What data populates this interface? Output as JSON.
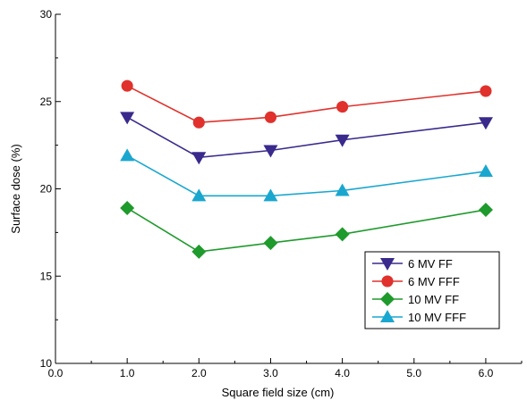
{
  "chart_data": {
    "type": "line",
    "xlabel": "Square field size (cm)",
    "ylabel": "Surface dose (%)",
    "xlim": [
      0.0,
      6.5
    ],
    "ylim": [
      10,
      30
    ],
    "x_ticks": [
      "0.0",
      "1.0",
      "2.0",
      "3.0",
      "4.0",
      "5.0",
      "6.0"
    ],
    "y_ticks": [
      "10",
      "15",
      "20",
      "25",
      "30"
    ],
    "x": [
      1.0,
      2.0,
      3.0,
      4.0,
      6.0
    ],
    "legend_position": "bottom-right",
    "grid": false,
    "series": [
      {
        "name": "6 MV FF",
        "color": "#3a2a8c",
        "marker": "triangle-down",
        "values": [
          24.1,
          21.8,
          22.2,
          22.8,
          23.8
        ]
      },
      {
        "name": "6 MV FFF",
        "color": "#e0312c",
        "marker": "circle",
        "values": [
          25.9,
          23.8,
          24.1,
          24.7,
          25.6
        ]
      },
      {
        "name": "10 MV FF",
        "color": "#1f9a2c",
        "marker": "diamond",
        "values": [
          18.9,
          16.4,
          16.9,
          17.4,
          18.8
        ]
      },
      {
        "name": "10 MV FFF",
        "color": "#1aa7cf",
        "marker": "triangle-up",
        "values": [
          21.9,
          19.6,
          19.6,
          19.9,
          21.0
        ]
      }
    ]
  }
}
